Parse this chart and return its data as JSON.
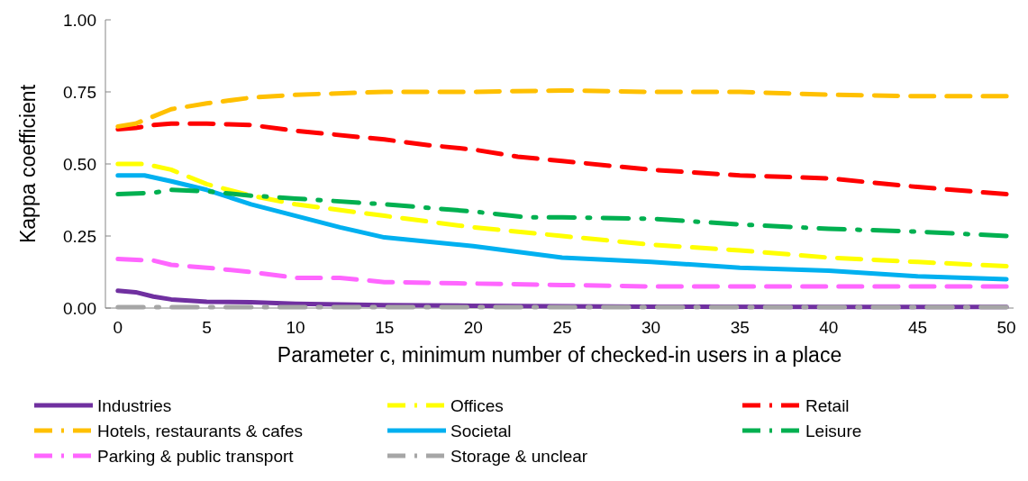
{
  "chart_data": {
    "type": "line",
    "xlabel": "Parameter c, minimum number of checked-in users in a place",
    "ylabel": "Kappa coefficient",
    "xlim": [
      -0.7,
      50.4
    ],
    "xticks": [
      0,
      5,
      10,
      15,
      20,
      25,
      30,
      35,
      40,
      45,
      50
    ],
    "ylim": [
      0,
      1
    ],
    "yticks": [
      {
        "value": 0,
        "label": "0.00"
      },
      {
        "value": 0.25,
        "label": "0.25"
      },
      {
        "value": 0.5,
        "label": "0.50"
      },
      {
        "value": 0.75,
        "label": "0.75"
      },
      {
        "value": 1,
        "label": "1.00"
      }
    ],
    "grid": false,
    "legend": "bottom",
    "marker": "none",
    "series": [
      {
        "name": "Industries",
        "color": "#7030a0",
        "line_style": "solid",
        "x": [
          0,
          1,
          2,
          3,
          5,
          7.5,
          10,
          15,
          20,
          30,
          40,
          50
        ],
        "values": [
          0.06,
          0.055,
          0.04,
          0.03,
          0.022,
          0.02,
          0.015,
          0.01,
          0.008,
          0.005,
          0.004,
          0.004
        ]
      },
      {
        "name": "Offices",
        "color": "#ffff00",
        "line_style": "dashed",
        "x": [
          0,
          1.5,
          3,
          5,
          7.5,
          10,
          15,
          20,
          25,
          30,
          35,
          40,
          45,
          50
        ],
        "values": [
          0.5,
          0.5,
          0.48,
          0.43,
          0.39,
          0.36,
          0.32,
          0.28,
          0.25,
          0.22,
          0.2,
          0.175,
          0.16,
          0.145
        ]
      },
      {
        "name": "Retail",
        "color": "#ff0000",
        "line_style": "dashed",
        "x": [
          0,
          1,
          2,
          3,
          5,
          7.5,
          10,
          15,
          17.5,
          20,
          22.5,
          25,
          30,
          35,
          40,
          45,
          50
        ],
        "values": [
          0.62,
          0.625,
          0.635,
          0.64,
          0.64,
          0.635,
          0.615,
          0.585,
          0.565,
          0.55,
          0.525,
          0.51,
          0.48,
          0.46,
          0.45,
          0.42,
          0.395
        ]
      },
      {
        "name": "Hotels, restaurants & cafes",
        "color": "#ffc000",
        "line_style": "dashed",
        "x": [
          0,
          1,
          3,
          5,
          7.5,
          10,
          15,
          20,
          25,
          30,
          35,
          40,
          45,
          50
        ],
        "values": [
          0.63,
          0.64,
          0.69,
          0.71,
          0.73,
          0.74,
          0.75,
          0.75,
          0.755,
          0.75,
          0.75,
          0.74,
          0.735,
          0.735
        ]
      },
      {
        "name": "Societal",
        "color": "#00b0f0",
        "line_style": "solid",
        "x": [
          0,
          1.5,
          3,
          5,
          7.5,
          10,
          12.5,
          15,
          20,
          25,
          30,
          35,
          40,
          45,
          50
        ],
        "values": [
          0.46,
          0.46,
          0.44,
          0.41,
          0.36,
          0.32,
          0.28,
          0.245,
          0.215,
          0.175,
          0.16,
          0.14,
          0.13,
          0.11,
          0.1
        ]
      },
      {
        "name": "Leisure",
        "color": "#00b050",
        "line_style": "dashdot",
        "x": [
          0,
          2,
          3,
          5,
          7.5,
          10,
          15,
          20,
          23,
          25,
          30,
          35,
          40,
          45,
          50
        ],
        "values": [
          0.395,
          0.4,
          0.41,
          0.405,
          0.39,
          0.38,
          0.36,
          0.335,
          0.315,
          0.315,
          0.31,
          0.29,
          0.275,
          0.265,
          0.25
        ]
      },
      {
        "name": "Parking & public transport",
        "color": "#ff66ff",
        "line_style": "dashed",
        "x": [
          0,
          2,
          3,
          5,
          7.5,
          10,
          12.5,
          15,
          20,
          25,
          30,
          35,
          40,
          45,
          50
        ],
        "values": [
          0.17,
          0.165,
          0.15,
          0.14,
          0.125,
          0.105,
          0.105,
          0.09,
          0.085,
          0.08,
          0.075,
          0.075,
          0.075,
          0.075,
          0.075
        ]
      },
      {
        "name": "Storage & unclear",
        "color": "#a6a6a6",
        "line_style": "dashdot",
        "x": [
          0,
          10,
          20,
          30,
          40,
          50
        ],
        "values": [
          0.003,
          0.003,
          0.003,
          0.003,
          0.003,
          0.003
        ]
      }
    ]
  }
}
